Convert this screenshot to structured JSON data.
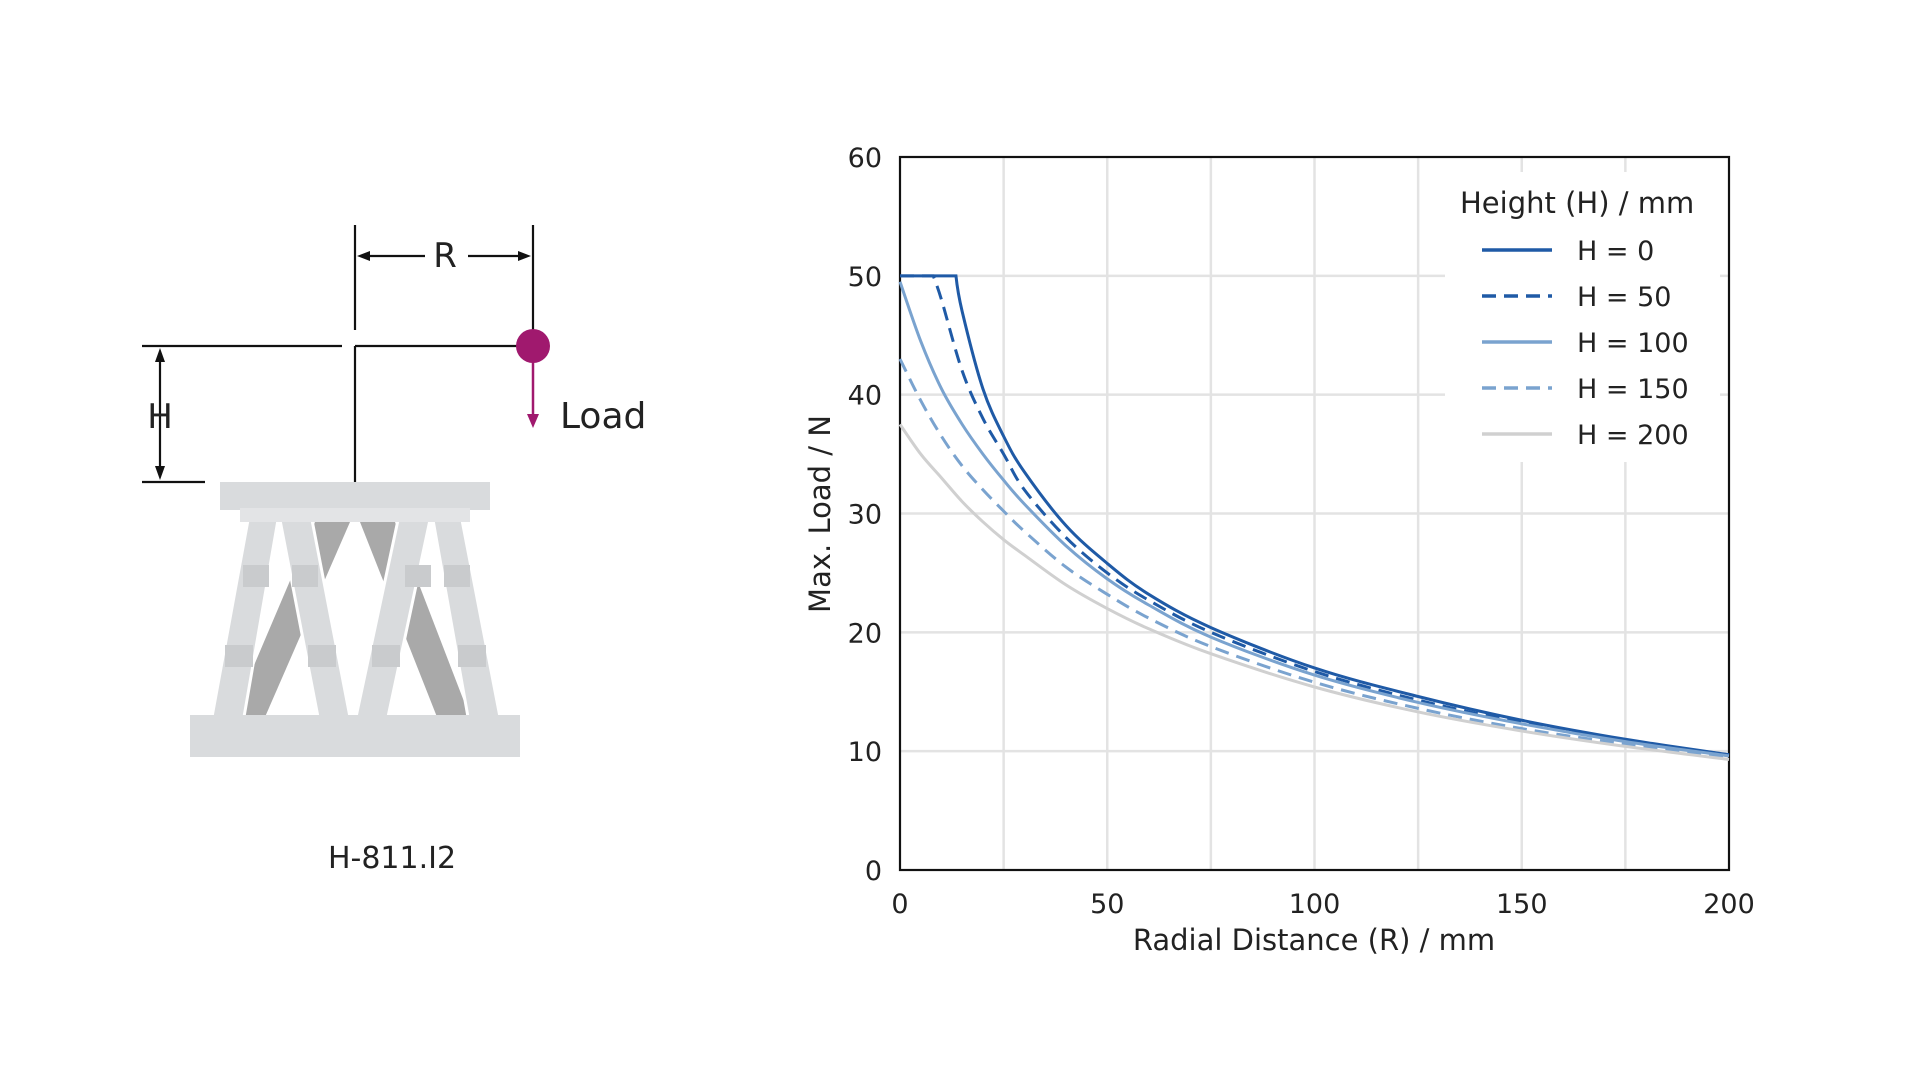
{
  "diagram": {
    "model_label": "H-811.I2",
    "radius_label": "R",
    "height_label": "H",
    "load_label": "Load",
    "load_color": "#a0196e"
  },
  "chart_data": {
    "type": "line",
    "title": "",
    "xlabel": "Radial Distance (R) / mm",
    "ylabel": "Max. Load / N",
    "xlim": [
      0,
      200
    ],
    "ylim": [
      0,
      60
    ],
    "x_ticks": [
      0,
      50,
      100,
      150,
      200
    ],
    "y_ticks": [
      0,
      10,
      20,
      30,
      40,
      50,
      60
    ],
    "grid": true,
    "legend_title": "Height (H) / mm",
    "legend_position": "top-right",
    "series": [
      {
        "name": "H = 0",
        "color": "#1f5aa6",
        "dash": "solid",
        "x": [
          0,
          13.5,
          15,
          20,
          25,
          30,
          40,
          50,
          60,
          75,
          100,
          125,
          150,
          175,
          200
        ],
        "y": [
          50,
          50,
          47,
          40.5,
          36.5,
          33.5,
          29,
          25.8,
          23.2,
          20.4,
          17,
          14.6,
          12.6,
          11,
          9.7
        ]
      },
      {
        "name": "H = 50",
        "color": "#1f5aa6",
        "dash": "dashed",
        "x": [
          0,
          8,
          10,
          15,
          20,
          25,
          30,
          40,
          50,
          60,
          75,
          100,
          125,
          150,
          175,
          200
        ],
        "y": [
          50,
          50,
          48,
          42,
          38,
          35,
          32,
          28,
          25,
          22.7,
          20,
          16.7,
          14.3,
          12.4,
          10.9,
          9.7
        ]
      },
      {
        "name": "H = 100",
        "color": "#7aa3cf",
        "dash": "solid",
        "x": [
          0,
          5,
          10,
          15,
          20,
          25,
          30,
          40,
          50,
          60,
          75,
          100,
          125,
          150,
          175,
          200
        ],
        "y": [
          49.5,
          44.5,
          40.5,
          37.5,
          35,
          32.8,
          30.8,
          27.3,
          24.5,
          22.3,
          19.6,
          16.4,
          14.1,
          12.3,
          10.8,
          9.6
        ]
      },
      {
        "name": "H = 150",
        "color": "#7aa3cf",
        "dash": "dashed",
        "x": [
          0,
          5,
          10,
          15,
          20,
          25,
          30,
          40,
          50,
          60,
          75,
          100,
          125,
          150,
          175,
          200
        ],
        "y": [
          43,
          39.5,
          36.5,
          34,
          32,
          30.2,
          28.5,
          25.5,
          23.2,
          21.2,
          18.8,
          15.8,
          13.6,
          11.9,
          10.6,
          9.4
        ]
      },
      {
        "name": "H = 200",
        "color": "#d0d0d0",
        "dash": "solid",
        "x": [
          0,
          5,
          10,
          15,
          20,
          25,
          30,
          40,
          50,
          60,
          75,
          100,
          125,
          150,
          175,
          200
        ],
        "y": [
          37.5,
          35,
          33,
          31,
          29.3,
          27.8,
          26.5,
          24,
          22,
          20.3,
          18.2,
          15.4,
          13.3,
          11.7,
          10.4,
          9.3
        ]
      }
    ]
  }
}
